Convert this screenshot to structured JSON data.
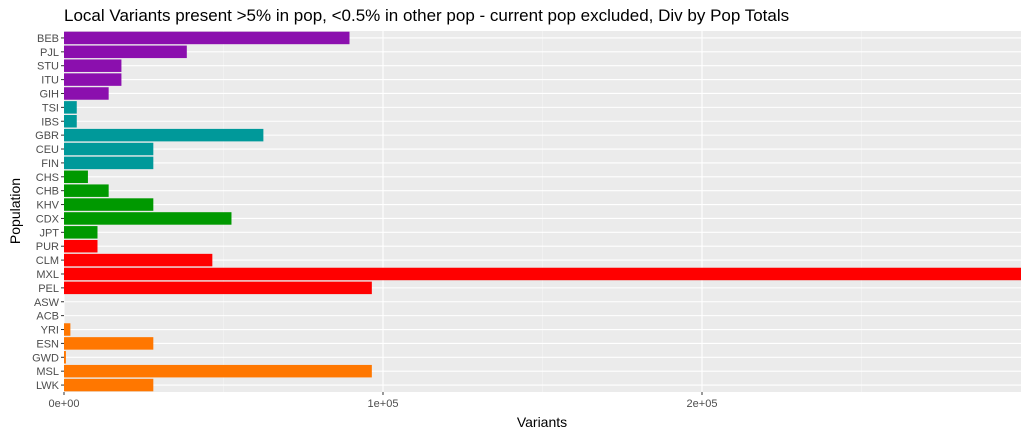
{
  "chart_data": {
    "type": "bar",
    "orientation": "horizontal",
    "title": "Local Variants present >5% in pop, <0.5% in other pop - current pop excluded, Div by Pop Totals",
    "xlabel": "Variants",
    "ylabel": "Population",
    "xlim": [
      0,
      300000
    ],
    "x_ticks": [
      0,
      100000,
      200000
    ],
    "x_tick_labels": [
      "0e+00",
      "1e+05",
      "2e+05"
    ],
    "grid": true,
    "legend": "none",
    "colors": {
      "panel_background": "#ebebeb",
      "grid_major": "#ffffff",
      "grid_minor": "#f5f5f5",
      "purple": "#8b0fae",
      "teal": "#00999a",
      "green": "#009900",
      "red": "#ff0000",
      "orange": "#ff7700"
    },
    "categories": [
      "BEB",
      "PJL",
      "STU",
      "ITU",
      "GIH",
      "TSI",
      "IBS",
      "GBR",
      "CEU",
      "FIN",
      "CHS",
      "CHB",
      "KHV",
      "CDX",
      "JPT",
      "PUR",
      "CLM",
      "MXL",
      "PEL",
      "ASW",
      "ACB",
      "YRI",
      "ESN",
      "GWD",
      "MSL",
      "LWK"
    ],
    "values": [
      89500,
      38500,
      18000,
      18000,
      14000,
      4000,
      4000,
      62500,
      28000,
      28000,
      7500,
      14000,
      28000,
      52500,
      10500,
      10500,
      46500,
      300000,
      96500,
      0,
      0,
      2000,
      28000,
      600,
      96500,
      28000
    ],
    "bar_colors": [
      "#8b0fae",
      "#8b0fae",
      "#8b0fae",
      "#8b0fae",
      "#8b0fae",
      "#00999a",
      "#00999a",
      "#00999a",
      "#00999a",
      "#00999a",
      "#009900",
      "#009900",
      "#009900",
      "#009900",
      "#009900",
      "#ff0000",
      "#ff0000",
      "#ff0000",
      "#ff0000",
      "#ff7700",
      "#ff7700",
      "#ff7700",
      "#ff7700",
      "#ff7700",
      "#ff7700",
      "#ff7700"
    ]
  }
}
